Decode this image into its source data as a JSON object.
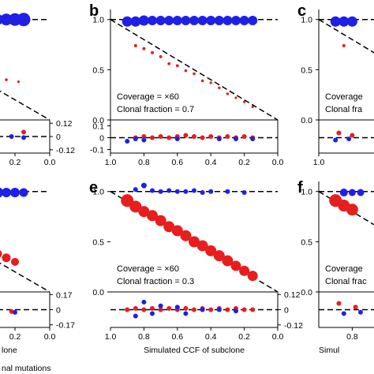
{
  "colors": {
    "clonal": "#1f1fe6",
    "subclonal": "#e61e1e",
    "axis": "#000000",
    "reference": "#000000"
  },
  "chart_data": [
    {
      "type": "scatter",
      "panel": "a",
      "label": "",
      "annotations": [],
      "xlabel": "",
      "xlim": [
        1.0,
        0.0
      ],
      "x_ticks": [
        "0.2",
        "0.0"
      ],
      "main_ylim": [
        0,
        1.1
      ],
      "main_y_ticks": [],
      "residual_ylim": [
        -0.15,
        0.15
      ],
      "residual_y_ticks": [
        "0.12",
        "0",
        "-0.12"
      ],
      "residual_y_values": [
        0.12,
        0,
        -0.12
      ],
      "series": [
        {
          "role": "clonal",
          "x": [
            0.3,
            0.25,
            0.2,
            0.15
          ],
          "y": [
            1.0,
            1.0,
            1.0,
            1.0
          ],
          "size": [
            7,
            7.5,
            8,
            8.5
          ]
        },
        {
          "role": "subclonal",
          "x": [
            0.3,
            0.25,
            0.18
          ],
          "y": [
            0.42,
            0.4,
            0.38
          ],
          "size": [
            2,
            1.8,
            1.6
          ]
        }
      ],
      "residuals": [
        {
          "role": "subclonal",
          "x": [
            0.3,
            0.15
          ],
          "y": [
            0.05,
            0.04
          ]
        },
        {
          "role": "clonal",
          "x": [
            0.3,
            0.22,
            0.15
          ],
          "y": [
            -0.01,
            0.0,
            -0.01
          ]
        }
      ]
    },
    {
      "type": "scatter",
      "panel": "b",
      "label": "b",
      "annotations": [
        "Coverage = ×60",
        "Clonal fraction = 0.7"
      ],
      "xlabel": "",
      "xlim": [
        1.0,
        0.0
      ],
      "x_ticks": [
        "1.0",
        "0.8",
        "0.6",
        "0.4",
        "0.2",
        "0.0"
      ],
      "main_ylim": [
        0,
        1.1
      ],
      "main_y_ticks": [
        "1.0",
        "0.5",
        "0.0"
      ],
      "main_y_values": [
        1.0,
        0.5,
        0.0
      ],
      "residual_ylim": [
        -0.13,
        0.15
      ],
      "residual_y_ticks": [
        "0.1",
        "0",
        "-0.1"
      ],
      "residual_y_values": [
        0.1,
        0,
        -0.1
      ],
      "series": [
        {
          "role": "clonal",
          "x": [
            0.9,
            0.85,
            0.8,
            0.75,
            0.7,
            0.65,
            0.6,
            0.55,
            0.5,
            0.45,
            0.4,
            0.35,
            0.3,
            0.25,
            0.2,
            0.15
          ],
          "y": [
            0.98,
            0.98,
            0.99,
            0.99,
            0.99,
            0.99,
            0.99,
            0.99,
            0.99,
            0.99,
            0.99,
            0.99,
            0.99,
            0.99,
            0.99,
            0.99
          ],
          "size": [
            6.5,
            6.5,
            6.5,
            6,
            6,
            6,
            6,
            6,
            6,
            6,
            6,
            6,
            6,
            6,
            6,
            6
          ]
        },
        {
          "role": "subclonal",
          "x": [
            0.85,
            0.8,
            0.75,
            0.7,
            0.65,
            0.6,
            0.55,
            0.5,
            0.45,
            0.4,
            0.35,
            0.3,
            0.25,
            0.2,
            0.15
          ],
          "y": [
            0.74,
            0.71,
            0.67,
            0.63,
            0.56,
            0.54,
            0.49,
            0.46,
            0.39,
            0.37,
            0.32,
            0.26,
            0.22,
            0.18,
            0.13
          ],
          "size": [
            2,
            2,
            2,
            1.9,
            1.9,
            1.9,
            1.8,
            1.8,
            1.8,
            1.7,
            1.7,
            1.7,
            1.6,
            1.6,
            1.6
          ]
        }
      ],
      "residuals": [
        {
          "role": "subclonal",
          "x": [
            0.85,
            0.8,
            0.75,
            0.7,
            0.65,
            0.6,
            0.55,
            0.5,
            0.45,
            0.4,
            0.35,
            0.3,
            0.25,
            0.2,
            0.15
          ],
          "y": [
            0.0,
            0.01,
            0.0,
            0.01,
            0.0,
            0.01,
            0.02,
            0.01,
            0.0,
            0.01,
            0.0,
            0.01,
            0.0,
            0.01,
            0.0
          ]
        },
        {
          "role": "clonal",
          "x": [
            0.9,
            0.85,
            0.8,
            0.6,
            0.35,
            0.25,
            0.15
          ],
          "y": [
            -0.03,
            -0.01,
            -0.02,
            -0.01,
            -0.01,
            -0.01,
            -0.01
          ]
        }
      ]
    },
    {
      "type": "scatter",
      "panel": "c",
      "label": "c",
      "annotations": [
        "Coverage",
        "Clonal fra"
      ],
      "xlabel": "",
      "xlim": [
        1.0,
        0.0
      ],
      "x_ticks": [
        "1.0"
      ],
      "main_ylim": [
        0,
        1.1
      ],
      "main_y_ticks": [
        "1.0",
        "0.5",
        "0.0"
      ],
      "main_y_values": [
        1.0,
        0.5,
        0.0
      ],
      "residual_ylim": [
        -0.13,
        0.15
      ],
      "residual_y_ticks": [],
      "series": [
        {
          "role": "clonal",
          "x": [
            0.9,
            0.85,
            0.8
          ],
          "y": [
            0.98,
            0.98,
            0.98
          ],
          "size": [
            6.5,
            6.5,
            6.5
          ]
        },
        {
          "role": "subclonal",
          "x": [
            0.85
          ],
          "y": [
            0.74
          ],
          "size": [
            2
          ]
        }
      ],
      "residuals": [
        {
          "role": "subclonal",
          "x": [
            0.88,
            0.8
          ],
          "y": [
            0.04,
            0.02
          ]
        },
        {
          "role": "clonal",
          "x": [
            0.9,
            0.82
          ],
          "y": [
            -0.02,
            -0.01
          ]
        }
      ]
    },
    {
      "type": "scatter",
      "panel": "d",
      "label": "",
      "annotations": [],
      "xlabel": "lone",
      "xlim": [
        1.0,
        0.0
      ],
      "x_ticks": [
        "0.2",
        "0.0"
      ],
      "main_ylim": [
        0,
        1.1
      ],
      "main_y_ticks": [],
      "residual_ylim": [
        -0.2,
        0.2
      ],
      "residual_y_ticks": [
        "0.17",
        "0",
        "-0.17"
      ],
      "residual_y_values": [
        0.17,
        0,
        -0.17
      ],
      "series": [
        {
          "role": "clonal",
          "x": [
            0.3,
            0.25,
            0.2,
            0.15
          ],
          "y": [
            0.99,
            0.99,
            0.99,
            0.99
          ],
          "size": [
            7,
            6,
            6,
            5.5
          ]
        },
        {
          "role": "subclonal",
          "x": [
            0.3,
            0.25,
            0.2
          ],
          "y": [
            0.38,
            0.34,
            0.3
          ],
          "size": [
            5.5,
            5.5,
            5
          ]
        }
      ],
      "residuals": [
        {
          "role": "subclonal",
          "x": [
            0.3,
            0.22
          ],
          "y": [
            0.02,
            -0.02
          ]
        },
        {
          "role": "clonal",
          "x": [
            0.3,
            0.2
          ],
          "y": [
            -0.02,
            -0.03
          ]
        }
      ]
    },
    {
      "type": "scatter",
      "panel": "e",
      "label": "e",
      "annotations": [
        "Coverage = ×60",
        "Clonal fraction = 0.3"
      ],
      "xlabel": "Simulated CCF of subclone",
      "xlim": [
        1.0,
        0.0
      ],
      "x_ticks": [
        "1.0",
        "0.8",
        "0.6",
        "0.4",
        "0.2",
        "0.0"
      ],
      "main_ylim": [
        0,
        1.1
      ],
      "main_y_ticks": [
        "1.0",
        "0.5",
        "0.0"
      ],
      "main_y_values": [
        1.0,
        0.5,
        0.0
      ],
      "residual_ylim": [
        -0.14,
        0.14
      ],
      "residual_y_ticks": [
        "0.12",
        "0",
        "-0.12"
      ],
      "residual_y_values": [
        0.12,
        0,
        -0.12
      ],
      "series": [
        {
          "role": "clonal",
          "x": [
            0.85,
            0.8,
            0.75,
            0.7,
            0.65,
            0.6,
            0.55,
            0.5,
            0.45,
            0.4,
            0.3,
            0.2
          ],
          "y": [
            1.02,
            1.06,
            1.01,
            1.0,
            1.01,
            1.0,
            1.0,
            1.01,
            0.99,
            1.0,
            1.0,
            0.99
          ],
          "size": [
            3,
            3.5,
            3,
            3,
            3,
            3,
            3,
            3,
            3,
            3,
            3,
            3
          ]
        },
        {
          "role": "subclonal",
          "x": [
            0.9,
            0.85,
            0.8,
            0.75,
            0.7,
            0.65,
            0.6,
            0.55,
            0.5,
            0.45,
            0.4,
            0.35,
            0.3,
            0.25,
            0.2,
            0.15
          ],
          "y": [
            0.91,
            0.85,
            0.8,
            0.76,
            0.71,
            0.65,
            0.61,
            0.56,
            0.5,
            0.46,
            0.41,
            0.36,
            0.31,
            0.26,
            0.21,
            0.16
          ],
          "size": [
            8,
            7.5,
            7,
            7,
            7,
            7,
            7,
            7,
            7,
            7,
            7,
            7,
            7,
            6.5,
            6.5,
            6.5
          ]
        }
      ],
      "residuals": [
        {
          "role": "subclonal",
          "x": [
            0.9,
            0.85,
            0.8,
            0.75,
            0.7,
            0.65,
            0.6,
            0.55,
            0.5,
            0.45,
            0.4,
            0.35,
            0.3,
            0.25,
            0.2,
            0.15
          ],
          "y": [
            0.0,
            0.01,
            0.0,
            0.01,
            0.0,
            0.01,
            0.0,
            0.01,
            0.0,
            0.01,
            0.0,
            0.01,
            0.0,
            0.01,
            0.0,
            0.0
          ]
        },
        {
          "role": "clonal",
          "x": [
            0.85,
            0.8,
            0.75,
            0.7,
            0.6,
            0.55,
            0.45,
            0.35,
            0.25
          ],
          "y": [
            -0.05,
            0.06,
            -0.03,
            0.03,
            0.02,
            -0.03,
            0.0,
            0.0,
            -0.01
          ]
        }
      ]
    },
    {
      "type": "scatter",
      "panel": "f",
      "label": "f",
      "annotations": [
        "Coverage",
        "Clonal frac"
      ],
      "xlabel": "Simul",
      "xlim": [
        1.0,
        0.0
      ],
      "x_ticks": [
        "0.8"
      ],
      "main_ylim": [
        0,
        1.1
      ],
      "main_y_ticks": [
        "1.0",
        "0.5",
        "0.0"
      ],
      "main_y_values": [
        1.0,
        0.5,
        0.0
      ],
      "residual_ylim": [
        -0.14,
        0.14
      ],
      "residual_y_ticks": [],
      "series": [
        {
          "role": "clonal",
          "x": [
            0.85,
            0.8,
            0.75
          ],
          "y": [
            0.99,
            0.99,
            0.99
          ],
          "size": [
            5,
            4.5,
            4.5
          ]
        },
        {
          "role": "subclonal",
          "x": [
            0.9,
            0.85,
            0.8
          ],
          "y": [
            0.91,
            0.86,
            0.82
          ],
          "size": [
            8,
            7.5,
            7.5
          ]
        }
      ],
      "residuals": [
        {
          "role": "subclonal",
          "x": [
            0.88,
            0.78
          ],
          "y": [
            0.05,
            0.02
          ]
        },
        {
          "role": "clonal",
          "x": [
            0.85,
            0.75
          ],
          "y": [
            -0.03,
            -0.02
          ]
        }
      ]
    }
  ],
  "footer_text": "nal mutations"
}
